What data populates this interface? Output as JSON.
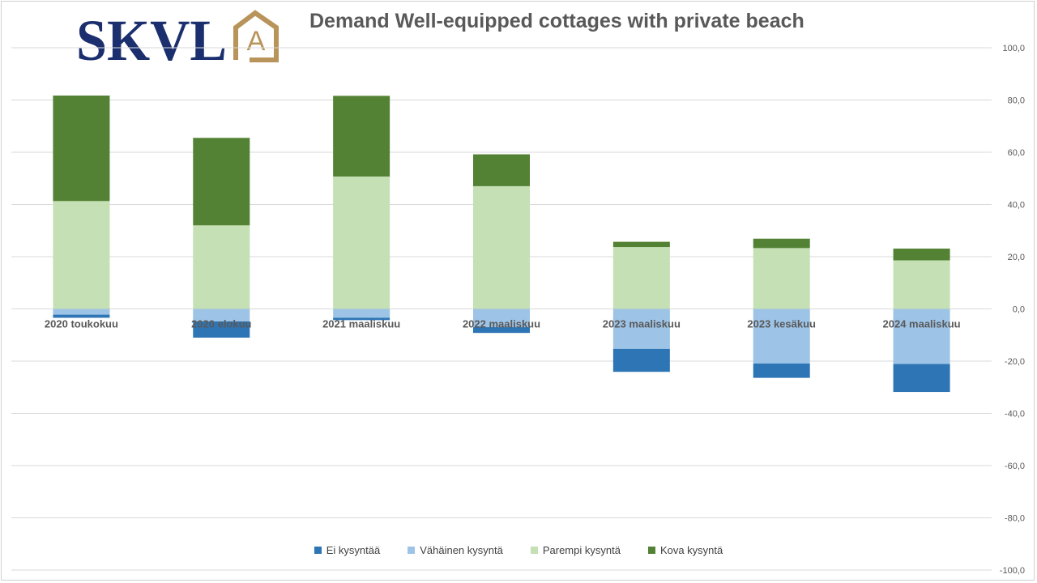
{
  "logo": {
    "text": "SKVL",
    "emblem_letter": "A",
    "text_color": "#1b2f6e",
    "emblem_color": "#b8935a"
  },
  "chart_data": {
    "type": "bar",
    "stacked": true,
    "title": "Demand Well-equipped cottages with private beach",
    "xlabel": "",
    "ylabel": "",
    "categories": [
      "2020 toukokuu",
      "2020 elokuu",
      "2021 maaliskuu",
      "2022 maaliskuu",
      "2023 maaliskuu",
      "2023 kesäkuu",
      "2024 maaliskuu"
    ],
    "ylim": [
      -100,
      100
    ],
    "y_ticks": [
      "100,0",
      "80,0",
      "60,0",
      "40,0",
      "20,0",
      "0,0",
      "-20,0",
      "-40,0",
      "-60,0",
      "-80,0",
      "-100,0"
    ],
    "y_axis_position": "right",
    "grid": true,
    "legend_position": "bottom",
    "series": [
      {
        "name": "Ei kysyntää",
        "color": "#2e75b6",
        "values": [
          -1.2,
          -6.2,
          -0.9,
          -2.2,
          -8.8,
          -5.5,
          -10.7
        ]
      },
      {
        "name": "Vähäinen kysyntä",
        "color": "#9dc3e6",
        "values": [
          -2.2,
          -4.8,
          -3.4,
          -7.0,
          -15.3,
          -20.9,
          -21.1
        ]
      },
      {
        "name": "Parempi kysyntä",
        "color": "#c5e0b4",
        "values": [
          41.3,
          32.0,
          50.7,
          47.0,
          23.7,
          23.3,
          18.6
        ]
      },
      {
        "name": "Kova kysyntä",
        "color": "#548235",
        "values": [
          40.4,
          33.5,
          30.9,
          12.2,
          2.0,
          3.6,
          4.5
        ]
      }
    ]
  }
}
